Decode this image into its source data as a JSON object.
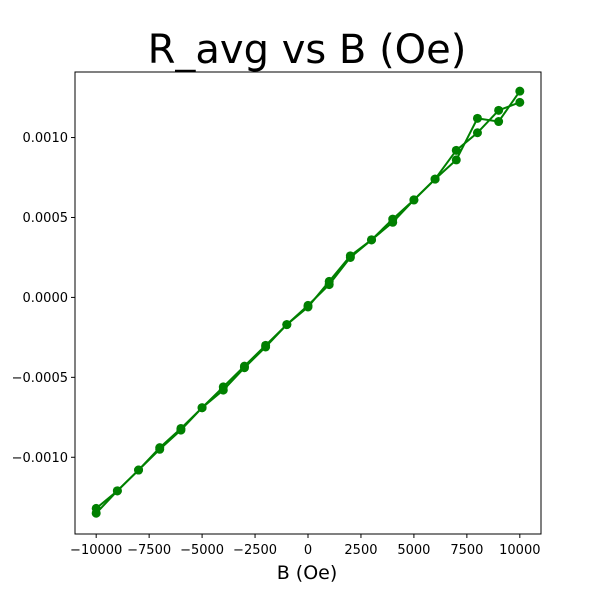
{
  "chart_data": {
    "type": "line",
    "title": "R_avg vs B (Oe)",
    "xlabel": "B (Oe)",
    "ylabel": "",
    "xlim": [
      -11000,
      11000
    ],
    "ylim": [
      -0.00148,
      0.00141
    ],
    "grid": false,
    "legend": "none",
    "color": "#008000",
    "xticks": [
      -10000,
      -7500,
      -5000,
      -2500,
      0,
      2500,
      5000,
      7500,
      10000
    ],
    "xtick_labels": [
      "−10000",
      "−7500",
      "−5000",
      "−2500",
      "0",
      "2500",
      "5000",
      "7500",
      "10000"
    ],
    "yticks": [
      -0.001,
      -0.0005,
      0.0,
      0.0005,
      0.001
    ],
    "ytick_labels": [
      "−0.0010",
      "−0.0005",
      "0.0000",
      "0.0005",
      "0.0010"
    ],
    "series": [
      {
        "x": [
          -10000,
          -9000,
          -8000,
          -7000,
          -6000,
          -5000,
          -4000,
          -3000,
          -2000,
          -1000,
          0,
          1000,
          2000,
          3000,
          4000,
          5000,
          6000,
          7000,
          8000,
          9000,
          10000
        ],
        "y": [
          -0.00135,
          -0.00121,
          -0.00108,
          -0.00095,
          -0.00083,
          -0.00069,
          -0.00056,
          -0.00043,
          -0.0003,
          -0.00017,
          -6e-05,
          0.0001,
          0.00026,
          0.00036,
          0.00049,
          0.00061,
          0.00074,
          0.00086,
          0.00112,
          0.0011,
          0.00129
        ]
      },
      {
        "x": [
          10000,
          9000,
          8000,
          7000,
          6000,
          5000,
          4000,
          3000,
          2000,
          1000,
          0,
          -1000,
          -2000,
          -3000,
          -4000,
          -5000,
          -6000,
          -7000,
          -8000,
          -9000,
          -10000
        ],
        "y": [
          0.00122,
          0.00117,
          0.00103,
          0.00092,
          0.00074,
          0.00061,
          0.00047,
          0.00036,
          0.00025,
          8e-05,
          -5e-05,
          -0.00017,
          -0.00031,
          -0.00044,
          -0.00058,
          -0.00069,
          -0.00082,
          -0.00094,
          -0.00108,
          -0.00121,
          -0.00132
        ]
      }
    ]
  }
}
